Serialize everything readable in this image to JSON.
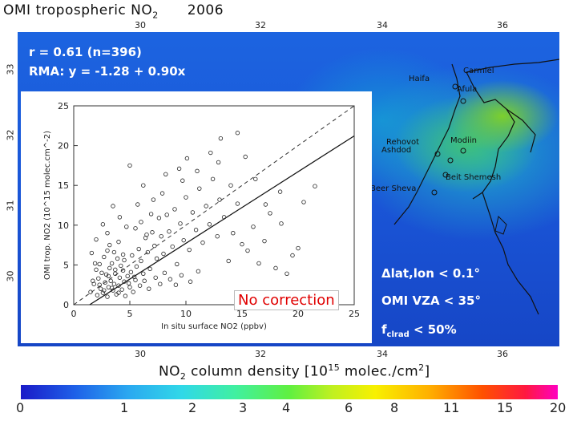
{
  "title": {
    "main": "OMI tropospheric NO",
    "sub": "2",
    "year": "2006"
  },
  "map": {
    "x_ticks_top": [
      "30",
      "32",
      "34",
      "36"
    ],
    "x_ticks_bottom": [
      "30",
      "32",
      "34",
      "36"
    ],
    "y_ticks": [
      "33",
      "32",
      "31",
      "30"
    ],
    "cities": [
      "Haifa",
      "Carmiel",
      "Afula",
      "Rehovot",
      "Ashdod",
      "Modiin",
      "Beit Shemesh",
      "Beer Sheva"
    ]
  },
  "stats": {
    "r_line": "r = 0.61 (n=396)",
    "rma_line": "RMA: y = -1.28 + 0.90x"
  },
  "conditions": {
    "lat_lon": "Δlat,lon < 0.1°",
    "vza": "OMI VZA < 35°",
    "cf_pre": "f",
    "cf_sub": "clrad",
    "cf_post": " < 50%"
  },
  "no_correction": "No correction",
  "colorbar": {
    "title_main": "NO",
    "title_sub": "2",
    "title_rest": " column density [10",
    "title_sup": "15",
    "title_end": " molec./cm",
    "title_sup2": "2",
    "title_close": "]",
    "ticks": [
      "0",
      "1",
      "2",
      "3",
      "4",
      "6",
      "8",
      "11",
      "15",
      "20"
    ],
    "colors": {
      "low": "#1a1ac8",
      "mid": "#60f040",
      "high": "#ff00c0"
    }
  },
  "chart_data": {
    "type": "scatter",
    "xlabel": "In situ surface NO2 (ppbv)",
    "ylabel": "OMI trop. NO2 (10^15 molec.cm^-2)",
    "xlim": [
      0,
      25
    ],
    "ylim": [
      0,
      25
    ],
    "x_ticks": [
      "0",
      "5",
      "10",
      "15",
      "20",
      "25"
    ],
    "y_ticks": [
      "0",
      "5",
      "10",
      "15",
      "20",
      "25"
    ],
    "regression": {
      "intercept": -1.28,
      "slope": 0.9
    },
    "one_to_one": true,
    "points": [
      [
        2.1,
        1.2
      ],
      [
        2.4,
        2.0
      ],
      [
        2.6,
        1.5
      ],
      [
        2.8,
        2.8
      ],
      [
        3.0,
        1.0
      ],
      [
        3.1,
        2.2
      ],
      [
        3.3,
        3.0
      ],
      [
        3.5,
        1.8
      ],
      [
        3.6,
        2.6
      ],
      [
        3.8,
        1.3
      ],
      [
        4.0,
        2.4
      ],
      [
        4.1,
        3.4
      ],
      [
        4.3,
        1.9
      ],
      [
        4.5,
        2.9
      ],
      [
        4.6,
        1.1
      ],
      [
        4.8,
        3.6
      ],
      [
        5.0,
        2.2
      ],
      [
        5.1,
        4.1
      ],
      [
        5.3,
        1.6
      ],
      [
        5.5,
        3.1
      ],
      [
        1.8,
        2.6
      ],
      [
        2.2,
        3.3
      ],
      [
        2.5,
        4.0
      ],
      [
        2.9,
        3.8
      ],
      [
        3.2,
        4.6
      ],
      [
        3.4,
        5.2
      ],
      [
        3.7,
        4.4
      ],
      [
        3.9,
        5.8
      ],
      [
        4.2,
        4.9
      ],
      [
        4.4,
        6.3
      ],
      [
        1.5,
        1.6
      ],
      [
        1.7,
        3.0
      ],
      [
        2.0,
        4.4
      ],
      [
        2.3,
        5.1
      ],
      [
        2.7,
        6.0
      ],
      [
        3.0,
        6.8
      ],
      [
        3.2,
        7.5
      ],
      [
        3.6,
        6.6
      ],
      [
        4.0,
        7.9
      ],
      [
        4.5,
        5.6
      ],
      [
        5.2,
        6.2
      ],
      [
        5.6,
        4.8
      ],
      [
        5.8,
        7.0
      ],
      [
        6.0,
        5.5
      ],
      [
        6.2,
        3.9
      ],
      [
        6.4,
        8.4
      ],
      [
        6.6,
        6.6
      ],
      [
        6.8,
        4.5
      ],
      [
        7.0,
        9.1
      ],
      [
        7.2,
        7.4
      ],
      [
        5.5,
        9.6
      ],
      [
        6.0,
        10.4
      ],
      [
        6.5,
        8.8
      ],
      [
        7.4,
        5.8
      ],
      [
        7.6,
        10.9
      ],
      [
        7.8,
        8.6
      ],
      [
        8.0,
        6.4
      ],
      [
        8.3,
        11.3
      ],
      [
        8.5,
        9.2
      ],
      [
        8.8,
        7.3
      ],
      [
        9.0,
        12.0
      ],
      [
        9.2,
        5.1
      ],
      [
        9.5,
        10.2
      ],
      [
        9.8,
        8.1
      ],
      [
        10.0,
        13.5
      ],
      [
        10.3,
        6.9
      ],
      [
        10.6,
        11.6
      ],
      [
        10.9,
        9.4
      ],
      [
        11.2,
        14.6
      ],
      [
        11.5,
        7.8
      ],
      [
        11.8,
        12.4
      ],
      [
        12.1,
        10.1
      ],
      [
        12.4,
        15.8
      ],
      [
        12.8,
        8.6
      ],
      [
        13.0,
        13.2
      ],
      [
        13.4,
        11.0
      ],
      [
        13.8,
        5.5
      ],
      [
        14.2,
        9.0
      ],
      [
        14.6,
        12.7
      ],
      [
        15.0,
        7.6
      ],
      [
        15.5,
        6.8
      ],
      [
        16.0,
        9.8
      ],
      [
        16.5,
        5.2
      ],
      [
        17.0,
        8.0
      ],
      [
        17.5,
        11.5
      ],
      [
        18.0,
        4.6
      ],
      [
        18.5,
        10.2
      ],
      [
        19.0,
        3.9
      ],
      [
        19.5,
        6.2
      ],
      [
        20.0,
        7.1
      ],
      [
        8.2,
        16.4
      ],
      [
        9.4,
        17.1
      ],
      [
        10.1,
        18.4
      ],
      [
        12.2,
        19.1
      ],
      [
        13.1,
        20.9
      ],
      [
        14.6,
        21.6
      ],
      [
        15.3,
        18.6
      ],
      [
        17.1,
        12.6
      ],
      [
        18.4,
        14.2
      ],
      [
        20.5,
        12.9
      ],
      [
        5.0,
        17.5
      ],
      [
        6.2,
        15.0
      ],
      [
        7.1,
        13.2
      ],
      [
        3.5,
        12.4
      ],
      [
        2.6,
        10.1
      ],
      [
        4.1,
        11.0
      ],
      [
        3.0,
        9.0
      ],
      [
        2.0,
        8.2
      ],
      [
        1.6,
        6.5
      ],
      [
        1.9,
        5.2
      ],
      [
        4.7,
        9.8
      ],
      [
        5.7,
        12.6
      ],
      [
        6.9,
        11.4
      ],
      [
        7.9,
        14.0
      ],
      [
        9.7,
        15.6
      ],
      [
        11.0,
        16.8
      ],
      [
        12.9,
        17.9
      ],
      [
        14.0,
        15.0
      ],
      [
        16.2,
        15.8
      ],
      [
        21.5,
        14.9
      ],
      [
        2.3,
        2.5
      ],
      [
        2.7,
        1.8
      ],
      [
        3.1,
        3.6
      ],
      [
        3.4,
        2.1
      ],
      [
        3.7,
        3.9
      ],
      [
        4.0,
        1.5
      ],
      [
        4.4,
        4.3
      ],
      [
        4.9,
        2.7
      ],
      [
        5.4,
        3.5
      ],
      [
        5.9,
        2.4
      ],
      [
        6.3,
        3.0
      ],
      [
        6.7,
        2.0
      ],
      [
        7.3,
        3.4
      ],
      [
        7.7,
        2.6
      ],
      [
        8.1,
        4.0
      ],
      [
        8.6,
        3.2
      ],
      [
        9.1,
        2.5
      ],
      [
        9.6,
        3.7
      ],
      [
        10.4,
        2.9
      ],
      [
        11.1,
        4.2
      ]
    ]
  }
}
